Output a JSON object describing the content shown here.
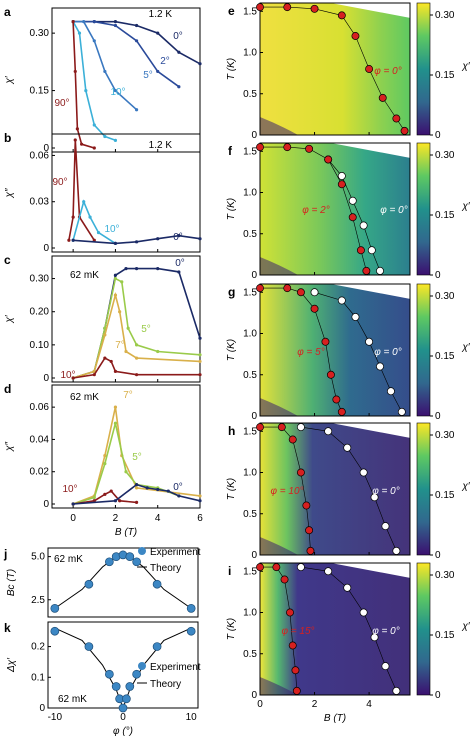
{
  "panels_left": [
    {
      "label": "a",
      "temp": "1.2 K",
      "ylabel": "χ′",
      "yticks": [
        "0.30",
        "0.15",
        "0"
      ],
      "angles": [
        {
          "t": "0°",
          "c": "#1b2a66"
        },
        {
          "t": "2°",
          "c": "#2a4a9a"
        },
        {
          "t": "5°",
          "c": "#3a78c0"
        },
        {
          "t": "10°",
          "c": "#3bb0d8"
        },
        {
          "t": "90°",
          "c": "#8b1a1a"
        }
      ]
    },
    {
      "label": "b",
      "temp": "1.2 K",
      "ylabel": "χ″",
      "yticks": [
        "0.06",
        "0.03",
        "0"
      ],
      "angles": [
        {
          "t": "90°",
          "c": "#8b1a1a"
        },
        {
          "t": "10°",
          "c": "#3bb0d8"
        },
        {
          "t": "0°",
          "c": "#1b2a66"
        }
      ]
    },
    {
      "label": "c",
      "temp": "62 mK",
      "ylabel": "χ′",
      "yticks": [
        "0.30",
        "0.20",
        "0.10",
        "0"
      ],
      "angles": [
        {
          "t": "0°",
          "c": "#1b2a66"
        },
        {
          "t": "5°",
          "c": "#9acb4a"
        },
        {
          "t": "7°",
          "c": "#d9b04a"
        },
        {
          "t": "10°",
          "c": "#8b1a1a"
        }
      ]
    },
    {
      "label": "d",
      "temp": "62 mK",
      "ylabel": "χ″",
      "yticks": [
        "0.06",
        "0.04",
        "0.02",
        "0"
      ],
      "angles": [
        {
          "t": "7°",
          "c": "#d9b04a"
        },
        {
          "t": "5°",
          "c": "#9acb4a"
        },
        {
          "t": "10°",
          "c": "#8b1a1a"
        },
        {
          "t": "0°",
          "c": "#1b2a66"
        }
      ]
    }
  ],
  "left_xaxis": {
    "label": "B (T)",
    "ticks": [
      "0",
      "2",
      "4",
      "6"
    ]
  },
  "panel_j": {
    "label": "j",
    "temp": "62 mK",
    "ylabel": "Bc (T)",
    "yticks": [
      "5.0",
      "2.5"
    ],
    "legend": [
      "Experiment",
      "Theory"
    ]
  },
  "panel_k": {
    "label": "k",
    "temp": "62 mK",
    "ylabel": "Δχ′",
    "yticks": [
      "0.2",
      "0.1",
      "0"
    ],
    "legend": [
      "Experiment",
      "Theory"
    ],
    "xlabel": "φ (°)",
    "xticks": [
      "-10",
      "0",
      "10"
    ]
  },
  "panels_right": [
    {
      "label": "e",
      "phis": [
        "φ = 0°"
      ]
    },
    {
      "label": "f",
      "phis": [
        "φ = 2°",
        "φ = 0°"
      ]
    },
    {
      "label": "g",
      "phis": [
        "φ = 5°",
        "φ = 0°"
      ]
    },
    {
      "label": "h",
      "phis": [
        "φ = 10°",
        "φ = 0°"
      ]
    },
    {
      "label": "i",
      "phis": [
        "φ = 15°",
        "φ = 0°"
      ]
    }
  ],
  "right_axes": {
    "ylabel": "T (K)",
    "yticks": [
      "1.5",
      "1.0",
      "0.5",
      "0"
    ],
    "xlabel": "B (T)",
    "xticks": [
      "0",
      "2",
      "4"
    ],
    "cbar_label": "χ′",
    "cbar_ticks": [
      "0.30",
      "0.15",
      "0"
    ]
  },
  "colors": {
    "red": "#d62020",
    "white": "#ffffff",
    "exp": "#3c87c4"
  },
  "chart_data": [
    {
      "type": "line",
      "panel": "a",
      "xlabel": "B (T)",
      "ylabel": "χ′",
      "xlim": [
        -1,
        6
      ],
      "ylim": [
        0,
        0.35
      ],
      "series": [
        {
          "name": "0°",
          "x": [
            0,
            1,
            2,
            3,
            4,
            5,
            6
          ],
          "y": [
            0.33,
            0.33,
            0.33,
            0.32,
            0.3,
            0.25,
            0.22
          ]
        },
        {
          "name": "2°",
          "x": [
            0,
            1,
            2,
            3,
            4,
            5
          ],
          "y": [
            0.33,
            0.33,
            0.32,
            0.28,
            0.2,
            0.16
          ]
        },
        {
          "name": "5°",
          "x": [
            0,
            0.5,
            1,
            1.5,
            2,
            3
          ],
          "y": [
            0.33,
            0.33,
            0.28,
            0.2,
            0.15,
            0.1
          ]
        },
        {
          "name": "10°",
          "x": [
            0,
            0.3,
            0.6,
            1,
            1.5,
            2
          ],
          "y": [
            0.33,
            0.3,
            0.15,
            0.06,
            0.03,
            0.02
          ]
        },
        {
          "name": "90°",
          "x": [
            0,
            0.1,
            0.2,
            0.4,
            1
          ],
          "y": [
            0.33,
            0.2,
            0.05,
            0.01,
            0
          ]
        }
      ]
    },
    {
      "type": "line",
      "panel": "b",
      "xlabel": "B (T)",
      "ylabel": "χ″",
      "xlim": [
        -1,
        6
      ],
      "ylim": [
        0,
        0.07
      ],
      "series": [
        {
          "name": "90°",
          "x": [
            -0.2,
            0,
            0.1,
            0.3,
            1
          ],
          "y": [
            0.005,
            0.02,
            0.07,
            0.02,
            0.005
          ]
        },
        {
          "name": "10°",
          "x": [
            0,
            0.5,
            0.8,
            1.2,
            2
          ],
          "y": [
            0.005,
            0.03,
            0.02,
            0.01,
            0.003
          ]
        },
        {
          "name": "0°",
          "x": [
            0,
            2,
            3,
            4,
            5,
            6
          ],
          "y": [
            0.005,
            0.003,
            0.004,
            0.006,
            0.008,
            0.006
          ]
        }
      ]
    },
    {
      "type": "line",
      "panel": "c",
      "xlabel": "B (T)",
      "ylabel": "χ′",
      "xlim": [
        -1,
        6
      ],
      "ylim": [
        0,
        0.35
      ],
      "series": [
        {
          "name": "0°",
          "x": [
            0,
            1,
            1.5,
            2,
            2.5,
            3,
            4,
            5,
            6
          ],
          "y": [
            0,
            0.02,
            0.15,
            0.31,
            0.33,
            0.33,
            0.33,
            0.32,
            0.12
          ]
        },
        {
          "name": "5°",
          "x": [
            0,
            1,
            1.5,
            2,
            2.3,
            2.6,
            3,
            4,
            6
          ],
          "y": [
            0,
            0.02,
            0.15,
            0.3,
            0.29,
            0.15,
            0.1,
            0.08,
            0.07
          ]
        },
        {
          "name": "7°",
          "x": [
            0,
            1,
            1.5,
            2,
            2.2,
            2.5,
            3,
            6
          ],
          "y": [
            0,
            0.02,
            0.13,
            0.25,
            0.2,
            0.08,
            0.06,
            0.05
          ]
        },
        {
          "name": "10°",
          "x": [
            0,
            1,
            1.5,
            1.8,
            2,
            3,
            6
          ],
          "y": [
            0,
            0.01,
            0.06,
            0.05,
            0.02,
            0.01,
            0.01
          ]
        }
      ]
    },
    {
      "type": "line",
      "panel": "d",
      "xlabel": "B (T)",
      "ylabel": "χ″",
      "xlim": [
        -1,
        6
      ],
      "ylim": [
        0,
        0.07
      ],
      "series": [
        {
          "name": "7°",
          "x": [
            0,
            1,
            1.5,
            2,
            2.3,
            3,
            6
          ],
          "y": [
            0,
            0.005,
            0.03,
            0.06,
            0.03,
            0.01,
            0.005
          ]
        },
        {
          "name": "5°",
          "x": [
            0,
            1,
            1.5,
            2,
            2.5,
            3,
            4,
            5
          ],
          "y": [
            0,
            0.004,
            0.025,
            0.05,
            0.02,
            0.012,
            0.01,
            0.005
          ]
        },
        {
          "name": "10°",
          "x": [
            0,
            1,
            1.5,
            1.8,
            2.2,
            3
          ],
          "y": [
            0,
            0.002,
            0.006,
            0.008,
            0.002,
            0.001
          ]
        },
        {
          "name": "0°",
          "x": [
            0,
            2,
            3,
            3.5,
            4,
            4.5,
            5,
            6
          ],
          "y": [
            0,
            0.002,
            0.012,
            0.01,
            0.009,
            0.008,
            0.005,
            0.002
          ]
        }
      ]
    },
    {
      "type": "scatter",
      "panel": "j",
      "xlabel": "φ (°)",
      "ylabel": "Bc (T)",
      "xlim": [
        -11,
        11
      ],
      "ylim": [
        1.5,
        5.5
      ],
      "series": [
        {
          "name": "Experiment",
          "x": [
            -10,
            -5,
            -2,
            -1,
            0,
            1,
            2,
            5,
            10
          ],
          "y": [
            2.0,
            3.4,
            4.7,
            5.0,
            5.1,
            5.0,
            4.7,
            3.4,
            2.0
          ]
        },
        {
          "name": "Theory",
          "x": [
            -10,
            -6,
            -3,
            -1,
            0,
            1,
            3,
            6,
            10
          ],
          "y": [
            2.0,
            3.1,
            4.4,
            5.0,
            5.1,
            5.0,
            4.4,
            3.1,
            2.0
          ]
        }
      ]
    },
    {
      "type": "scatter",
      "panel": "k",
      "xlabel": "φ (°)",
      "ylabel": "Δχ′",
      "xlim": [
        -11,
        11
      ],
      "ylim": [
        0,
        0.28
      ],
      "series": [
        {
          "name": "Experiment",
          "x": [
            -10,
            -5,
            -2,
            -1,
            -0.5,
            0,
            0.5,
            1,
            2,
            5,
            10
          ],
          "y": [
            0.25,
            0.2,
            0.11,
            0.07,
            0.03,
            0,
            0.03,
            0.07,
            0.11,
            0.2,
            0.25
          ]
        },
        {
          "name": "Theory",
          "x": [
            -10,
            -6,
            -3,
            -1,
            0,
            1,
            3,
            6,
            10
          ],
          "y": [
            0.26,
            0.22,
            0.14,
            0.06,
            0,
            0.06,
            0.14,
            0.22,
            0.26
          ]
        }
      ]
    },
    {
      "type": "heatmap",
      "panel": "e",
      "xlabel": "B (T)",
      "ylabel": "T (K)",
      "xlim": [
        0,
        5.5
      ],
      "ylim": [
        0,
        1.6
      ],
      "colorbar": "χ′",
      "phi": [
        0
      ],
      "boundaries": [
        {
          "name": "φ = 0°",
          "B": [
            0,
            1,
            2,
            3,
            3.5,
            4,
            4.5,
            5,
            5.3
          ],
          "T": [
            1.55,
            1.55,
            1.53,
            1.45,
            1.2,
            0.8,
            0.45,
            0.2,
            0.05
          ]
        }
      ]
    },
    {
      "type": "heatmap",
      "panel": "f",
      "xlabel": "B (T)",
      "ylabel": "T (K)",
      "xlim": [
        0,
        5.5
      ],
      "ylim": [
        0,
        1.6
      ],
      "colorbar": "χ′",
      "phi": [
        2,
        0
      ],
      "boundaries": [
        {
          "name": "φ = 2°",
          "B": [
            0,
            1,
            1.8,
            2.5,
            3,
            3.4,
            3.7,
            3.9
          ],
          "T": [
            1.55,
            1.55,
            1.53,
            1.4,
            1.1,
            0.7,
            0.3,
            0.05
          ]
        },
        {
          "name": "φ = 0°",
          "B": [
            2.5,
            3,
            3.4,
            3.8,
            4.1,
            4.4
          ],
          "T": [
            1.4,
            1.2,
            0.9,
            0.6,
            0.3,
            0.05
          ]
        }
      ]
    },
    {
      "type": "heatmap",
      "panel": "g",
      "xlabel": "B (T)",
      "ylabel": "T (K)",
      "xlim": [
        0,
        5.5
      ],
      "ylim": [
        0,
        1.6
      ],
      "colorbar": "χ′",
      "phi": [
        5,
        0
      ],
      "boundaries": [
        {
          "name": "φ = 5°",
          "B": [
            0,
            1,
            1.5,
            2,
            2.4,
            2.6,
            2.8,
            3.0
          ],
          "T": [
            1.55,
            1.55,
            1.5,
            1.3,
            0.9,
            0.5,
            0.2,
            0.05
          ]
        },
        {
          "name": "φ = 0°",
          "B": [
            2,
            3,
            3.5,
            4,
            4.4,
            4.8,
            5.2
          ],
          "T": [
            1.5,
            1.4,
            1.2,
            0.9,
            0.6,
            0.3,
            0.05
          ]
        }
      ]
    },
    {
      "type": "heatmap",
      "panel": "h",
      "xlabel": "B (T)",
      "ylabel": "T (K)",
      "xlim": [
        0,
        5.5
      ],
      "ylim": [
        0,
        1.6
      ],
      "colorbar": "χ′",
      "phi": [
        10,
        0
      ],
      "boundaries": [
        {
          "name": "φ = 10°",
          "B": [
            0,
            0.8,
            1.2,
            1.5,
            1.7,
            1.8,
            1.85
          ],
          "T": [
            1.55,
            1.55,
            1.4,
            1.0,
            0.6,
            0.3,
            0.05
          ]
        },
        {
          "name": "φ = 0°",
          "B": [
            1.5,
            2.5,
            3.2,
            3.8,
            4.2,
            4.6,
            5.0
          ],
          "T": [
            1.55,
            1.5,
            1.3,
            1.0,
            0.7,
            0.35,
            0.05
          ]
        }
      ]
    },
    {
      "type": "heatmap",
      "panel": "i",
      "xlabel": "B (T)",
      "ylabel": "T (K)",
      "xlim": [
        0,
        5.5
      ],
      "ylim": [
        0,
        1.6
      ],
      "colorbar": "χ′",
      "phi": [
        15,
        0
      ],
      "boundaries": [
        {
          "name": "φ = 15°",
          "B": [
            0,
            0.6,
            0.9,
            1.1,
            1.2,
            1.3,
            1.35
          ],
          "T": [
            1.55,
            1.55,
            1.4,
            1.0,
            0.6,
            0.3,
            0.05
          ]
        },
        {
          "name": "φ = 0°",
          "B": [
            1.5,
            2.5,
            3.2,
            3.8,
            4.2,
            4.6,
            5.0
          ],
          "T": [
            1.55,
            1.5,
            1.3,
            1.0,
            0.7,
            0.35,
            0.05
          ]
        }
      ]
    }
  ]
}
